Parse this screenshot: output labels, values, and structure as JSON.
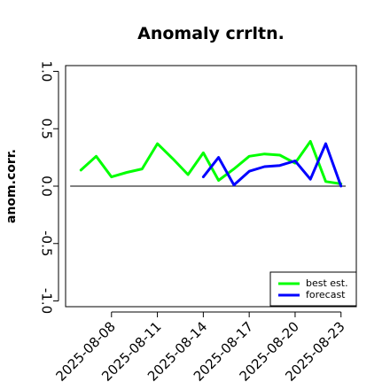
{
  "chart_data": {
    "type": "line",
    "title": "Anomaly crrltn.",
    "xlabel": "",
    "ylabel": "anom.corr.",
    "ylim": [
      -1.05,
      1.05
    ],
    "yticks": [
      {
        "value": 1.0,
        "label": "1.0"
      },
      {
        "value": 0.5,
        "label": "0.5"
      },
      {
        "value": 0.0,
        "label": "0.0"
      },
      {
        "value": -0.5,
        "label": "-0.5"
      },
      {
        "value": -1.0,
        "label": "-1.0"
      }
    ],
    "xlim": [
      "2025-08-05",
      "2025-08-24"
    ],
    "xticks": [
      {
        "date": "2025-08-08",
        "label": "2025-08-08",
        "color": "#000000"
      },
      {
        "date": "2025-08-11",
        "label": "2025-08-11",
        "color": "#000000"
      },
      {
        "date": "2025-08-14",
        "label": "2025-08-14",
        "color": "#228B22"
      },
      {
        "date": "2025-08-17",
        "label": "2025-08-17",
        "color": "#000000"
      },
      {
        "date": "2025-08-20",
        "label": "2025-08-20",
        "color": "#000000"
      },
      {
        "date": "2025-08-23",
        "label": "2025-08-23",
        "color": "#000000"
      }
    ],
    "reference_line": 0,
    "legend_position": "bottom-right",
    "series": [
      {
        "name": "best est.",
        "color": "#00FF00",
        "x": [
          "2025-08-06",
          "2025-08-07",
          "2025-08-08",
          "2025-08-09",
          "2025-08-10",
          "2025-08-11",
          "2025-08-12",
          "2025-08-13",
          "2025-08-14",
          "2025-08-15",
          "2025-08-16",
          "2025-08-17",
          "2025-08-18",
          "2025-08-19",
          "2025-08-20",
          "2025-08-21",
          "2025-08-22",
          "2025-08-23"
        ],
        "y": [
          0.14,
          0.26,
          0.08,
          0.12,
          0.15,
          0.37,
          0.24,
          0.1,
          0.29,
          0.05,
          0.15,
          0.26,
          0.28,
          0.27,
          0.2,
          0.39,
          0.04,
          0.02
        ]
      },
      {
        "name": "forecast",
        "color": "#0000FF",
        "x": [
          "2025-08-14",
          "2025-08-15",
          "2025-08-16",
          "2025-08-17",
          "2025-08-18",
          "2025-08-19",
          "2025-08-20",
          "2025-08-21",
          "2025-08-22",
          "2025-08-23"
        ],
        "y": [
          0.08,
          0.25,
          0.01,
          0.13,
          0.17,
          0.18,
          0.22,
          0.06,
          0.37,
          0.0
        ]
      }
    ]
  }
}
